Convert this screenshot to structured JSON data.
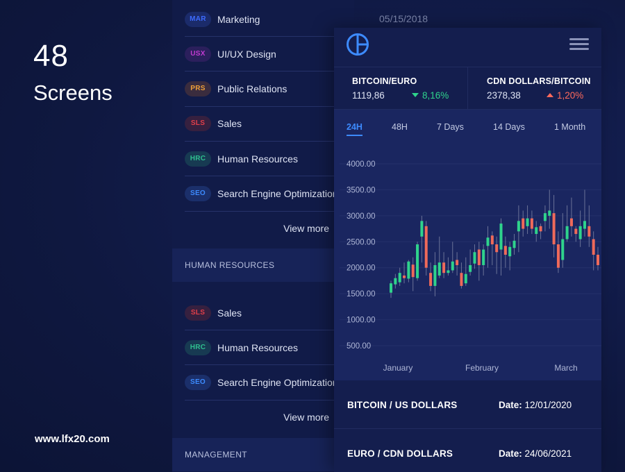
{
  "promo": {
    "count": "48",
    "label": "Screens",
    "url": "www.lfx20.com"
  },
  "list_top": {
    "items": [
      {
        "code": "MAR",
        "label": "Marketing",
        "color": "#3d6bff",
        "bg": "#1b2b6a"
      },
      {
        "code": "USX",
        "label": "UI/UX Design",
        "color": "#c13bd1",
        "bg": "#2b1f5c"
      },
      {
        "code": "PRS",
        "label": "Public Relations",
        "color": "#f0a03a",
        "bg": "#3a2c3e"
      },
      {
        "code": "SLS",
        "label": "Sales",
        "color": "#e23f4a",
        "bg": "#36203f"
      },
      {
        "code": "HRC",
        "label": "Human Resources",
        "color": "#2fbf8f",
        "bg": "#173a52"
      },
      {
        "code": "SEO",
        "label": "Search Engine Optimization",
        "color": "#3d8bff",
        "bg": "#1b2f6a"
      }
    ],
    "view_more": "View more"
  },
  "section_hr": {
    "title": "HUMAN RESOURCES",
    "items": [
      {
        "code": "SLS",
        "label": "Sales",
        "color": "#e23f4a",
        "bg": "#36203f"
      },
      {
        "code": "HRC",
        "label": "Human Resources",
        "color": "#2fbf8f",
        "bg": "#173a52"
      },
      {
        "code": "SEO",
        "label": "Search Engine Optimization",
        "color": "#3d8bff",
        "bg": "#1b2f6a"
      }
    ],
    "view_more": "View more"
  },
  "section_mgmt": {
    "title": "MANAGEMENT"
  },
  "date_top": "05/15/2018",
  "tickers": [
    {
      "pair": "BITCOIN/EURO",
      "price": "1119,86",
      "change": "8,16%",
      "direction": "down",
      "color": "#2fd38c"
    },
    {
      "pair": "CDN DOLLARS/BITCOIN",
      "price": "2378,38",
      "change": "1,20%",
      "direction": "up",
      "color": "#ff6a5c"
    }
  ],
  "tabs": [
    "24H",
    "48H",
    "7 Days",
    "14 Days",
    "1 Month"
  ],
  "active_tab": "24H",
  "chart_data": {
    "type": "candlestick",
    "y_ticks": [
      "4000.00",
      "3500.00",
      "3000.00",
      "2500.00",
      "2000.00",
      "1500.00",
      "1000.00",
      "500.00"
    ],
    "ylim": [
      500,
      4000
    ],
    "x_ticks": [
      "January",
      "February",
      "March"
    ],
    "up_color": "#2fd38c",
    "down_color": "#ef6a5a",
    "candles": [
      [
        1520,
        1700,
        1420,
        1750
      ],
      [
        1680,
        1800,
        1600,
        1880
      ],
      [
        1720,
        1900,
        1650,
        2000
      ],
      [
        1850,
        1800,
        1700,
        2100
      ],
      [
        1790,
        2120,
        1720,
        2150
      ],
      [
        2060,
        1820,
        1550,
        2200
      ],
      [
        1800,
        2450,
        1750,
        2500
      ],
      [
        2600,
        2900,
        2100,
        3000
      ],
      [
        2800,
        2000,
        1850,
        2900
      ],
      [
        1900,
        1650,
        1550,
        2100
      ],
      [
        1650,
        2050,
        1450,
        2300
      ],
      [
        1850,
        2100,
        1800,
        2600
      ],
      [
        2100,
        1900,
        1800,
        2300
      ],
      [
        1900,
        1950,
        1850,
        2200
      ],
      [
        1950,
        2120,
        1900,
        2500
      ],
      [
        2150,
        2050,
        1850,
        2300
      ],
      [
        1900,
        1650,
        1600,
        2100
      ],
      [
        1700,
        1880,
        1650,
        2200
      ],
      [
        1920,
        2050,
        1850,
        2350
      ],
      [
        2080,
        2300,
        1980,
        2450
      ],
      [
        2350,
        2050,
        1750,
        2500
      ],
      [
        2050,
        2350,
        1850,
        2450
      ],
      [
        2420,
        2580,
        2000,
        2800
      ],
      [
        2620,
        2450,
        2050,
        2700
      ],
      [
        2450,
        2300,
        1880,
        2600
      ],
      [
        2350,
        2850,
        1850,
        2950
      ],
      [
        2420,
        2250,
        2000,
        2600
      ],
      [
        2220,
        2400,
        1950,
        2500
      ],
      [
        2380,
        2520,
        2250,
        2650
      ],
      [
        2700,
        2900,
        2300,
        3200
      ],
      [
        2950,
        2750,
        2600,
        3100
      ],
      [
        2800,
        2950,
        2650,
        3200
      ],
      [
        2950,
        2750,
        2650,
        3100
      ],
      [
        2650,
        2780,
        2500,
        2900
      ],
      [
        2800,
        2700,
        2550,
        2850
      ],
      [
        2900,
        3050,
        2700,
        3200
      ],
      [
        3000,
        3100,
        2750,
        3500
      ],
      [
        3050,
        2450,
        2200,
        3400
      ],
      [
        2450,
        2000,
        1900,
        2700
      ],
      [
        2150,
        2550,
        2000,
        3050
      ],
      [
        2550,
        2800,
        2500,
        3200
      ],
      [
        2950,
        2800,
        2600,
        3350
      ],
      [
        2750,
        2650,
        2500,
        2800
      ],
      [
        2550,
        2800,
        2400,
        3100
      ],
      [
        2750,
        2900,
        2600,
        3500
      ],
      [
        2800,
        2600,
        2400,
        3200
      ],
      [
        2550,
        2250,
        1950,
        2700
      ],
      [
        2250,
        2050,
        1950,
        2400
      ]
    ]
  },
  "rows": [
    {
      "pair": "BITCOIN / US DOLLARS",
      "date_label": "Date:",
      "date": "12/01/2020"
    },
    {
      "pair": "EURO / CDN DOLLARS",
      "date_label": "Date:",
      "date": "24/06/2021"
    }
  ]
}
